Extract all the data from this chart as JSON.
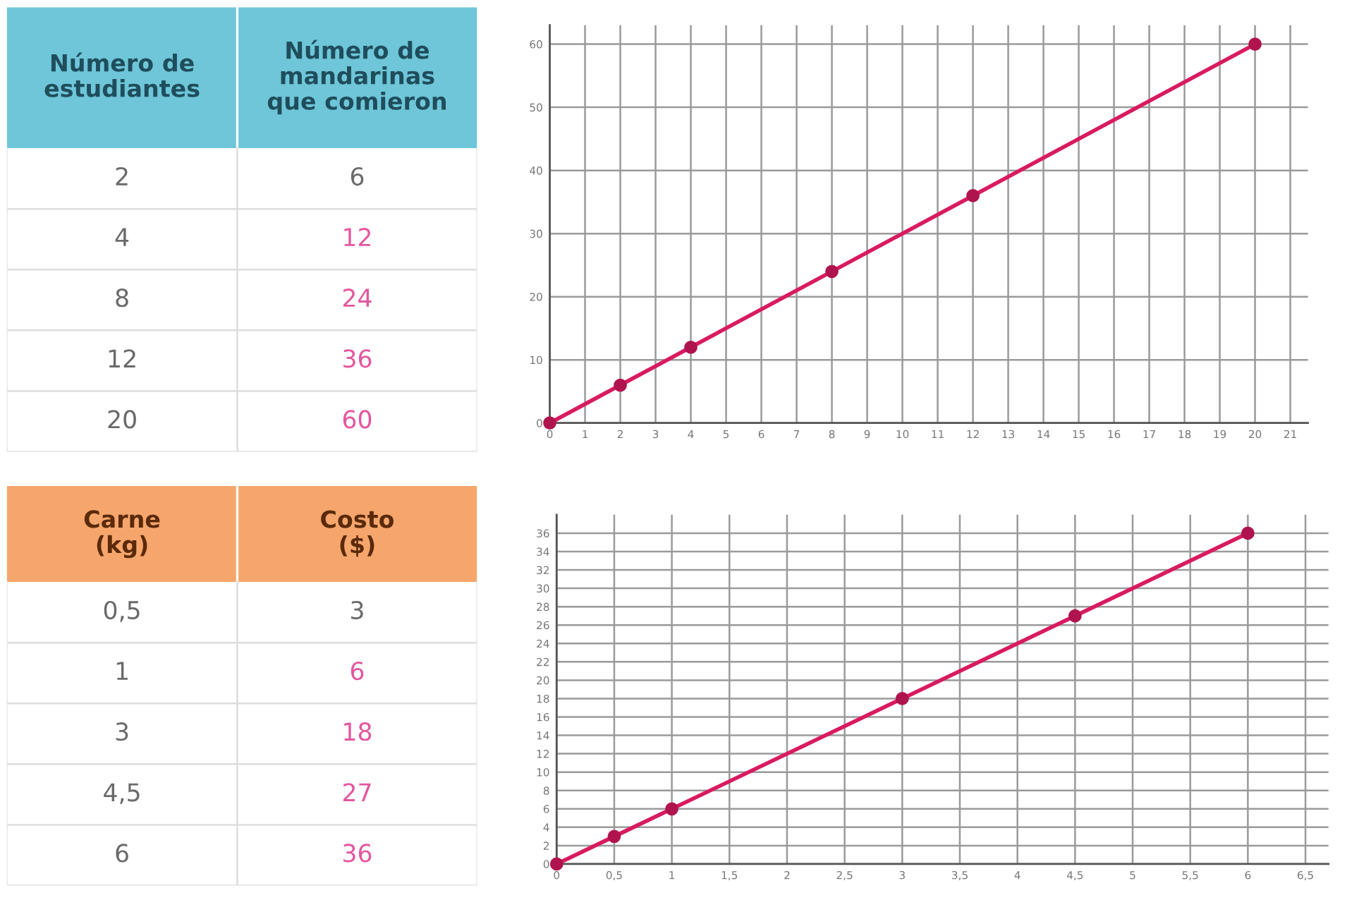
{
  "chart_data": [
    {
      "type": "other",
      "annotations": [
        "Número de\nestudiantes",
        "Número de\nmandarinas\nque comieron",
        "2",
        "6",
        "4",
        "12",
        "8",
        "24",
        "12",
        "36",
        "20",
        "60"
      ]
    },
    {
      "type": "line",
      "x": [
        0,
        2,
        4,
        8,
        12,
        20
      ],
      "series": [
        {
          "color": "#d81b60",
          "values": [
            0,
            6,
            12,
            24,
            36,
            60
          ]
        }
      ],
      "xlim": [
        0,
        21.5
      ],
      "ylim": [
        0,
        63
      ],
      "xticks": [
        0,
        1,
        2,
        3,
        4,
        5,
        6,
        7,
        8,
        9,
        10,
        11,
        12,
        13,
        14,
        15,
        16,
        17,
        18,
        19,
        20,
        21
      ],
      "yticks": [
        0,
        10,
        20,
        30,
        40,
        50,
        60
      ],
      "grid": true,
      "marker": "circle",
      "line_style": "solid"
    },
    {
      "type": "other",
      "annotations": [
        "Carne\n(kg)",
        "Costo\n($)",
        "0,5",
        "3",
        "1",
        "6",
        "3",
        "18",
        "4,5",
        "27",
        "6",
        "36"
      ]
    },
    {
      "type": "line",
      "x": [
        0,
        0.5,
        1,
        3,
        4.5,
        6
      ],
      "series": [
        {
          "color": "#d81b60",
          "values": [
            0,
            3,
            6,
            18,
            27,
            36
          ]
        }
      ],
      "xlim": [
        0,
        6.7
      ],
      "ylim": [
        0,
        38
      ],
      "xticks": [
        0,
        {
          "value": 0.5,
          "label": "0,5"
        },
        1,
        {
          "value": 1.5,
          "label": "1,5"
        },
        2,
        {
          "value": 2.5,
          "label": "2,5"
        },
        3,
        {
          "value": 3.5,
          "label": "3,5"
        },
        4,
        {
          "value": 4.5,
          "label": "4,5"
        },
        5,
        {
          "value": 5.5,
          "label": "5,5"
        },
        6,
        {
          "value": 6.5,
          "label": "6,5"
        }
      ],
      "yticks": [
        0,
        2,
        4,
        6,
        8,
        10,
        12,
        14,
        16,
        18,
        20,
        22,
        24,
        26,
        28,
        30,
        32,
        34,
        36
      ],
      "grid": true,
      "marker": "circle",
      "line_style": "solid"
    }
  ]
}
